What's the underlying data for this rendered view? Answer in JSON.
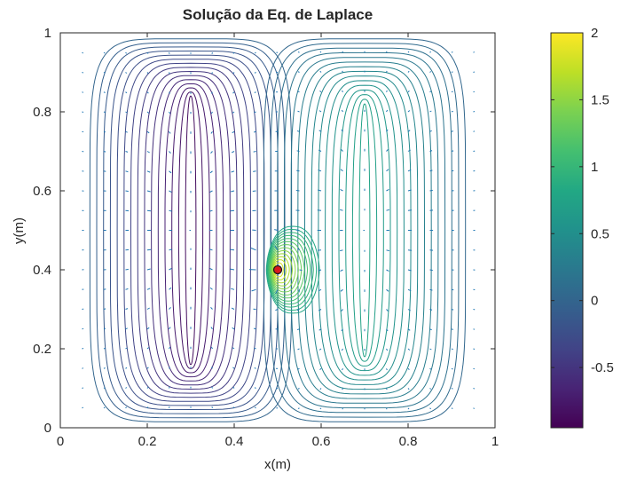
{
  "chart_data": {
    "type": "contour",
    "title": "Solução da Eq. de Laplace",
    "xlabel": "x(m)",
    "ylabel": "y(m)",
    "xlim": [
      0,
      1
    ],
    "ylim": [
      0,
      1
    ],
    "xticks": [
      0,
      0.2,
      0.4,
      0.6,
      0.8,
      1
    ],
    "yticks": [
      0,
      0.2,
      0.4,
      0.6,
      0.8,
      1
    ],
    "xtick_labels": [
      "0",
      "0.2",
      "0.4",
      "0.6",
      "0.8",
      "1"
    ],
    "ytick_labels": [
      "0",
      "0.2",
      "0.4",
      "0.6",
      "0.8",
      "1"
    ],
    "colorbar": {
      "colormap": "viridis",
      "range": [
        -0.95,
        2
      ],
      "ticks": [
        -0.5,
        0,
        0.5,
        1,
        1.5,
        2
      ],
      "tick_labels": [
        "-0.5",
        "0",
        "0.5",
        "1",
        "1.5",
        "2"
      ]
    },
    "contour_centers": [
      {
        "x": 0.3,
        "y": 0.5,
        "y_extent": [
          0.16,
          0.84
        ],
        "kind": "minimum",
        "color": "#4a1a66"
      },
      {
        "x": 0.7,
        "y": 0.5,
        "y_extent": [
          0.18,
          0.82
        ],
        "kind": "maximum",
        "color": "#2fb37c"
      }
    ],
    "source_point": {
      "x": 0.5,
      "y": 0.4,
      "color": "#d7191c"
    },
    "quiver_grid_step": 0.05,
    "quiver_color": "#1f77b4",
    "grid": false,
    "box": true
  }
}
